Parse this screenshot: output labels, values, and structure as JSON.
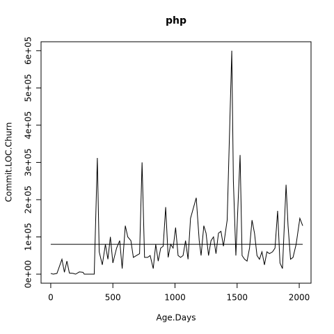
{
  "chart_data": {
    "type": "line",
    "title": "php",
    "x_label": "Age.Days",
    "y_label": "Commit.LOC.Churn",
    "x": [
      0,
      20,
      50,
      90,
      110,
      130,
      150,
      180,
      200,
      230,
      260,
      270,
      300,
      350,
      375,
      390,
      415,
      440,
      460,
      480,
      500,
      530,
      555,
      575,
      600,
      620,
      645,
      665,
      690,
      715,
      735,
      755,
      780,
      800,
      825,
      845,
      865,
      885,
      905,
      925,
      945,
      965,
      985,
      1005,
      1025,
      1045,
      1065,
      1085,
      1105,
      1125,
      1171,
      1195,
      1210,
      1232,
      1250,
      1270,
      1290,
      1310,
      1330,
      1350,
      1370,
      1390,
      1420,
      1457,
      1470,
      1490,
      1524,
      1540,
      1560,
      1580,
      1600,
      1620,
      1640,
      1660,
      1680,
      1700,
      1720,
      1740,
      1760,
      1785,
      1805,
      1826,
      1845,
      1865,
      1894,
      1910,
      1930,
      1950,
      1975,
      2005,
      2028
    ],
    "values": [
      2000,
      0,
      2000,
      40000,
      5000,
      35000,
      3000,
      2000,
      0,
      6000,
      5000,
      0,
      0,
      0,
      312000,
      60000,
      25000,
      80000,
      40000,
      100000,
      30000,
      70000,
      90000,
      15000,
      130000,
      100000,
      90000,
      45000,
      50000,
      55000,
      300000,
      45000,
      45000,
      50000,
      15000,
      80000,
      35000,
      70000,
      75000,
      180000,
      45000,
      80000,
      70000,
      125000,
      50000,
      45000,
      50000,
      90000,
      40000,
      150000,
      205000,
      90000,
      50000,
      130000,
      110000,
      50000,
      90000,
      100000,
      55000,
      110000,
      115000,
      75000,
      145000,
      600000,
      250000,
      50000,
      320000,
      50000,
      40000,
      35000,
      70000,
      145000,
      110000,
      50000,
      40000,
      60000,
      25000,
      60000,
      55000,
      60000,
      70000,
      170000,
      30000,
      15000,
      240000,
      130000,
      40000,
      45000,
      80000,
      150000,
      130000
    ],
    "color": "#000000",
    "hline": 80000,
    "xlim": [
      -78,
      2095
    ],
    "xticks": [
      0,
      500,
      1000,
      1500,
      2000
    ],
    "ylim": [
      -24300,
      624000
    ],
    "yticks": [
      {
        "value": 0,
        "label": "0e+00"
      },
      {
        "value": 100000,
        "label": "1e+05"
      },
      {
        "value": 200000,
        "label": "2e+05"
      },
      {
        "value": 300000,
        "label": "3e+05"
      },
      {
        "value": 400000,
        "label": "4e+05"
      },
      {
        "value": 500000,
        "label": "5e+05"
      },
      {
        "value": 600000,
        "label": "6e+05"
      }
    ]
  }
}
